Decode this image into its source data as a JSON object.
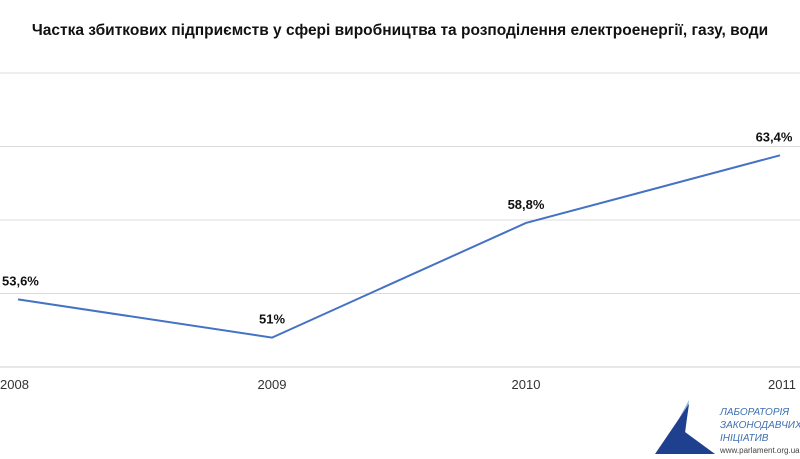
{
  "chart_data": {
    "type": "line",
    "title": "Частка збиткових підприємств у сфері виробництва та розподілення електроенергії, газу, води",
    "categories": [
      "2008",
      "2009",
      "2010",
      "2011"
    ],
    "series": [
      {
        "values": [
          53.6,
          51.0,
          58.8,
          63.4
        ],
        "labels": [
          "53,6%",
          "51%",
          "58,8%",
          "63,4%"
        ],
        "color": "#4472c4"
      }
    ],
    "ylim": [
      49,
      69
    ],
    "grid": true,
    "legend": "none"
  },
  "logo": {
    "lines": [
      "ЛАБОРАТОРІЯ",
      "ЗАКОНОДАВЧИХ",
      "ІНІЦІАТИВ"
    ],
    "url": "www.parlament.org.ua",
    "colors": {
      "dark": "#1f3f8f",
      "light": "#8fb0d8",
      "text": "#3f6fb0"
    }
  }
}
